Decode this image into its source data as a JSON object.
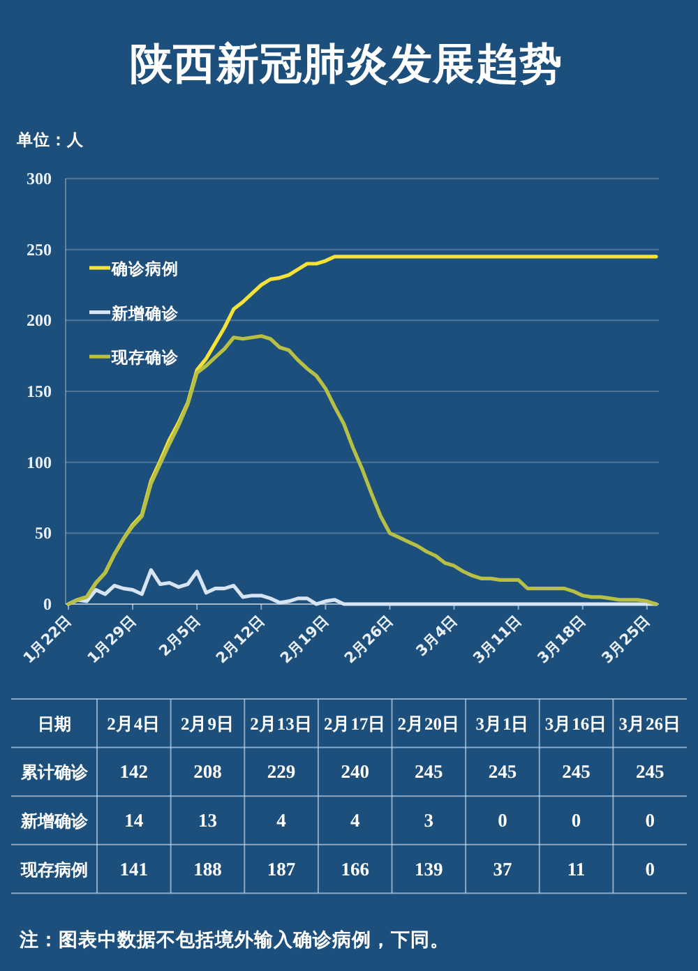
{
  "chart_data": [
    {
      "type": "line",
      "title": "陕西新冠肺炎发展趋势",
      "ylabel": "单位：人",
      "x": [
        "--01-22",
        "--01-23",
        "--01-24",
        "--01-25",
        "--01-26",
        "--01-27",
        "--01-28",
        "--01-29",
        "--01-30",
        "--01-31",
        "--02-01",
        "--02-02",
        "--02-03",
        "--02-04",
        "--02-05",
        "--02-06",
        "--02-07",
        "--02-08",
        "--02-09",
        "--02-10",
        "--02-11",
        "--02-12",
        "--02-13",
        "--02-14",
        "--02-15",
        "--02-16",
        "--02-17",
        "--02-18",
        "--02-19",
        "--02-20",
        "--02-21",
        "--02-22",
        "--02-23",
        "--02-24",
        "--02-25",
        "--02-26",
        "--02-27",
        "--02-28",
        "--02-29",
        "--03-01",
        "--03-02",
        "--03-03",
        "--03-04",
        "--03-05",
        "--03-06",
        "--03-07",
        "--03-08",
        "--03-09",
        "--03-10",
        "--03-11",
        "--03-12",
        "--03-13",
        "--03-14",
        "--03-15",
        "--03-16",
        "--03-17",
        "--03-18",
        "--03-19",
        "--03-20",
        "--03-21",
        "--03-22",
        "--03-23",
        "--03-24",
        "--03-25",
        "--03-26"
      ],
      "xlim": [
        "--01-22",
        "--03-26"
      ],
      "xticks": [
        {
          "value": "--01-22",
          "label": "1月22日"
        },
        {
          "value": "--01-29",
          "label": "1月29日"
        },
        {
          "value": "--02-05",
          "label": "2月5日"
        },
        {
          "value": "--02-12",
          "label": "2月12日"
        },
        {
          "value": "--02-19",
          "label": "2月19日"
        },
        {
          "value": "--02-26",
          "label": "2月26日"
        },
        {
          "value": "--03-04",
          "label": "3月4日"
        },
        {
          "value": "--03-11",
          "label": "3月11日"
        },
        {
          "value": "--03-18",
          "label": "3月18日"
        },
        {
          "value": "--03-25",
          "label": "3月25日"
        }
      ],
      "ylim": [
        0,
        300
      ],
      "yticks": [
        0,
        50,
        100,
        150,
        200,
        250,
        300
      ],
      "grid": "y",
      "legend": "top left",
      "series": [
        {
          "name": "确诊病例",
          "color": "#f4e23a",
          "values": [
            0,
            3,
            5,
            15,
            22,
            35,
            46,
            56,
            63,
            87,
            101,
            116,
            128,
            142,
            165,
            173,
            184,
            195,
            208,
            213,
            219,
            225,
            229,
            230,
            232,
            236,
            240,
            240,
            242,
            245,
            245,
            245,
            245,
            245,
            245,
            245,
            245,
            245,
            245,
            245,
            245,
            245,
            245,
            245,
            245,
            245,
            245,
            245,
            245,
            245,
            245,
            245,
            245,
            245,
            245,
            245,
            245,
            245,
            245,
            245,
            245,
            245,
            245,
            245,
            245
          ]
        },
        {
          "name": "新增确诊",
          "color": "#d6e4f3",
          "values": [
            0,
            3,
            2,
            10,
            7,
            13,
            11,
            10,
            7,
            24,
            14,
            15,
            12,
            14,
            23,
            8,
            11,
            11,
            13,
            5,
            6,
            6,
            4,
            1,
            2,
            4,
            4,
            0,
            2,
            3,
            0,
            0,
            0,
            0,
            0,
            0,
            0,
            0,
            0,
            0,
            0,
            0,
            0,
            0,
            0,
            0,
            0,
            0,
            0,
            0,
            0,
            0,
            0,
            0,
            0,
            0,
            0,
            0,
            0,
            0,
            0,
            0,
            0,
            0,
            0
          ]
        },
        {
          "name": "现存确诊",
          "color": "#b8bf45",
          "values": [
            0,
            3,
            5,
            15,
            22,
            35,
            46,
            55,
            62,
            85,
            99,
            113,
            126,
            141,
            163,
            168,
            174,
            180,
            188,
            187,
            188,
            189,
            187,
            181,
            179,
            172,
            166,
            161,
            152,
            139,
            127,
            110,
            95,
            78,
            62,
            50,
            47,
            44,
            41,
            37,
            34,
            29,
            27,
            23,
            20,
            18,
            18,
            17,
            17,
            17,
            11,
            11,
            11,
            11,
            11,
            9,
            6,
            5,
            5,
            4,
            3,
            3,
            3,
            2,
            0
          ]
        }
      ]
    },
    {
      "type": "other",
      "xlabel": "日期",
      "categories": [
        "2月4日",
        "2月9日",
        "2月13日",
        "2月17日",
        "2月20日",
        "3月1日",
        "3月16日",
        "3月26日"
      ],
      "series": [
        {
          "name": "累计确诊",
          "values": [
            142,
            208,
            229,
            240,
            245,
            245,
            245,
            245
          ]
        },
        {
          "name": "新增确诊",
          "values": [
            14,
            13,
            4,
            4,
            3,
            0,
            0,
            0
          ]
        },
        {
          "name": "现存病例",
          "values": [
            141,
            188,
            187,
            166,
            139,
            37,
            11,
            0
          ]
        }
      ],
      "data_labels": true,
      "annotations": [
        "注：图表中数据不包括境外输入确诊病例，下同。"
      ]
    }
  ]
}
